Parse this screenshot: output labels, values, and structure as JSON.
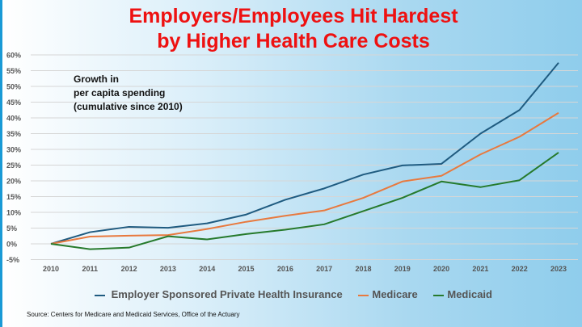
{
  "title_line1": "Employers/Employees Hit Hardest",
  "title_line2": "by Higher Health Care Costs",
  "annotation": [
    "Growth in",
    "per capita spending",
    "(cumulative since 2010)"
  ],
  "source": "Source: Centers for Medicare and Medicaid Services, Office of the Actuary",
  "chart_data": {
    "type": "line",
    "title": "Employers/Employees Hit Hardest by Higher Health Care Costs",
    "x": [
      "2010",
      "2011",
      "2012",
      "2013",
      "2014",
      "2015",
      "2016",
      "2017",
      "2018",
      "2019",
      "2020",
      "2021",
      "2022",
      "2023"
    ],
    "y_ticks": [
      "-5%",
      "0%",
      "5%",
      "10%",
      "15%",
      "20%",
      "25%",
      "30%",
      "35%",
      "40%",
      "45%",
      "50%",
      "55%",
      "60%"
    ],
    "ylim": [
      -5,
      60
    ],
    "y_unit": "%",
    "grid": true,
    "legend_position": "bottom",
    "series": [
      {
        "name": "Employer Sponsored Private Health Insurance",
        "color": "#1f5b80",
        "values": [
          0,
          3.7,
          5.4,
          5.1,
          6.5,
          9.3,
          14,
          17.6,
          22,
          24.9,
          25.4,
          35,
          42.5,
          57.5
        ]
      },
      {
        "name": "Medicare",
        "color": "#e8793e",
        "values": [
          0,
          2.3,
          2.6,
          2.8,
          4.7,
          7,
          8.9,
          10.6,
          14.6,
          19.8,
          21.6,
          28.4,
          34,
          41.6
        ]
      },
      {
        "name": "Medicaid",
        "color": "#267a2c",
        "values": [
          0,
          -1.7,
          -1.2,
          2.4,
          1.4,
          3.1,
          4.5,
          6.2,
          10.4,
          14.6,
          19.8,
          18,
          20.2,
          29
        ]
      }
    ]
  }
}
